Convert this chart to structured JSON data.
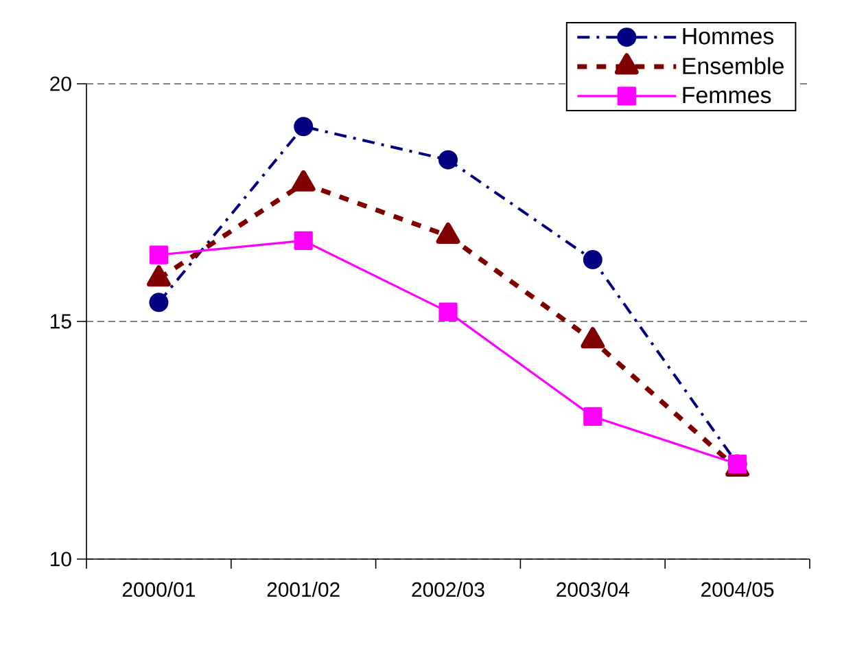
{
  "chart_data": {
    "type": "line",
    "categories": [
      "2000/01",
      "2001/02",
      "2002/03",
      "2003/04",
      "2004/05"
    ],
    "series": [
      {
        "name": "Hommes",
        "color": "#000080",
        "marker": "circle",
        "line_style": "dashdot",
        "values": [
          15.4,
          19.1,
          18.4,
          16.3,
          12.0
        ]
      },
      {
        "name": "Ensemble",
        "color": "#800000",
        "marker": "triangle",
        "line_style": "dashed",
        "values": [
          15.9,
          17.9,
          16.8,
          14.6,
          11.9
        ]
      },
      {
        "name": "Femmes",
        "color": "#ff00ff",
        "marker": "square",
        "line_style": "solid",
        "values": [
          16.4,
          16.7,
          15.2,
          13.0,
          12.0
        ]
      }
    ],
    "ylim": [
      10,
      20
    ],
    "yticks": [
      10,
      15,
      20
    ],
    "grid": "y",
    "legend": "top right"
  }
}
